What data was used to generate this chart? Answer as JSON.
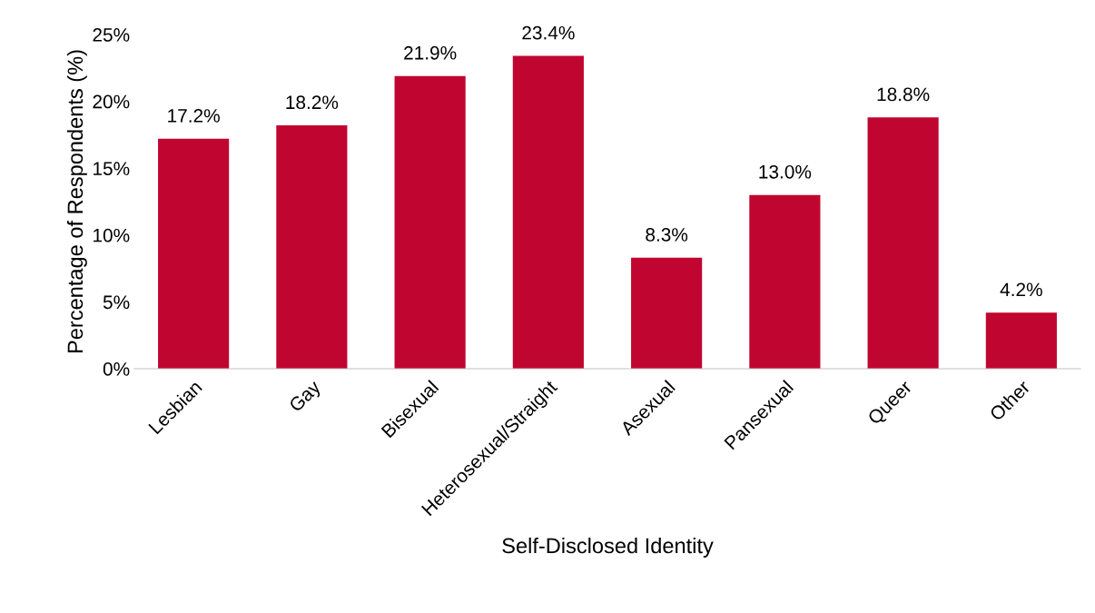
{
  "chart_data": {
    "type": "bar",
    "xlabel": "Self-Disclosed Identity",
    "ylabel": "Percentage of Respondents (%)",
    "categories": [
      "Lesbian",
      "Gay",
      "Bisexual",
      "Heterosexual/Straight",
      "Asexual",
      "Pansexual",
      "Queer",
      "Other"
    ],
    "values": [
      17.2,
      18.2,
      21.9,
      23.4,
      8.3,
      13.0,
      18.8,
      4.2
    ],
    "value_labels": [
      "17.2%",
      "18.2%",
      "21.9%",
      "23.4%",
      "8.3%",
      "13.0%",
      "18.8%",
      "4.2%"
    ],
    "color": "#c00630",
    "ylim": [
      0,
      25
    ],
    "yticks": [
      {
        "value": 0,
        "label": "0%"
      },
      {
        "value": 5,
        "label": "5%"
      },
      {
        "value": 10,
        "label": "10%"
      },
      {
        "value": 15,
        "label": "15%"
      },
      {
        "value": 20,
        "label": "20%"
      },
      {
        "value": 25,
        "label": "25%"
      }
    ],
    "grid": false
  }
}
